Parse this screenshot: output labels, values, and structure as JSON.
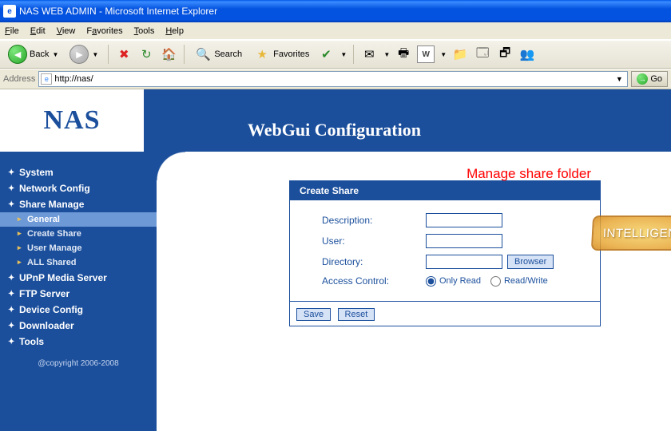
{
  "window": {
    "title": "NAS WEB ADMIN - Microsoft Internet Explorer"
  },
  "menu": {
    "file": "File",
    "edit": "Edit",
    "view": "View",
    "favorites": "Favorites",
    "tools": "Tools",
    "help": "Help"
  },
  "toolbar": {
    "back": "Back",
    "search": "Search",
    "favorites": "Favorites"
  },
  "address": {
    "label": "Address",
    "url": "http://nas/",
    "go": "Go"
  },
  "header": {
    "logo": "NAS",
    "title": "WebGui   Configuration"
  },
  "sidebar": {
    "items": [
      {
        "label": "System"
      },
      {
        "label": "Network Config"
      },
      {
        "label": "Share Manage",
        "expanded": true,
        "subs": [
          {
            "label": "General",
            "active": true
          },
          {
            "label": "Create Share"
          },
          {
            "label": "User Manage"
          },
          {
            "label": "ALL Shared"
          }
        ]
      },
      {
        "label": "UPnP Media Server"
      },
      {
        "label": "FTP Server"
      },
      {
        "label": "Device Config"
      },
      {
        "label": "Downloader"
      },
      {
        "label": "Tools"
      }
    ],
    "copyright": "@copyright 2006-2008"
  },
  "annotation": "Manage share folder",
  "panel": {
    "title": "Create Share",
    "fields": {
      "description": {
        "label": "Description:",
        "value": ""
      },
      "user": {
        "label": "User:",
        "value": ""
      },
      "directory": {
        "label": "Directory:",
        "value": "",
        "browse": "Browser"
      },
      "access": {
        "label": "Access Control:",
        "opt1": "Only Read",
        "opt2": "Read/Write",
        "selected": "opt1"
      }
    },
    "buttons": {
      "save": "Save",
      "reset": "Reset"
    }
  },
  "colors": {
    "brand": "#1b4f9c",
    "accent": "#6d99d6",
    "annot": "#ff0000"
  }
}
